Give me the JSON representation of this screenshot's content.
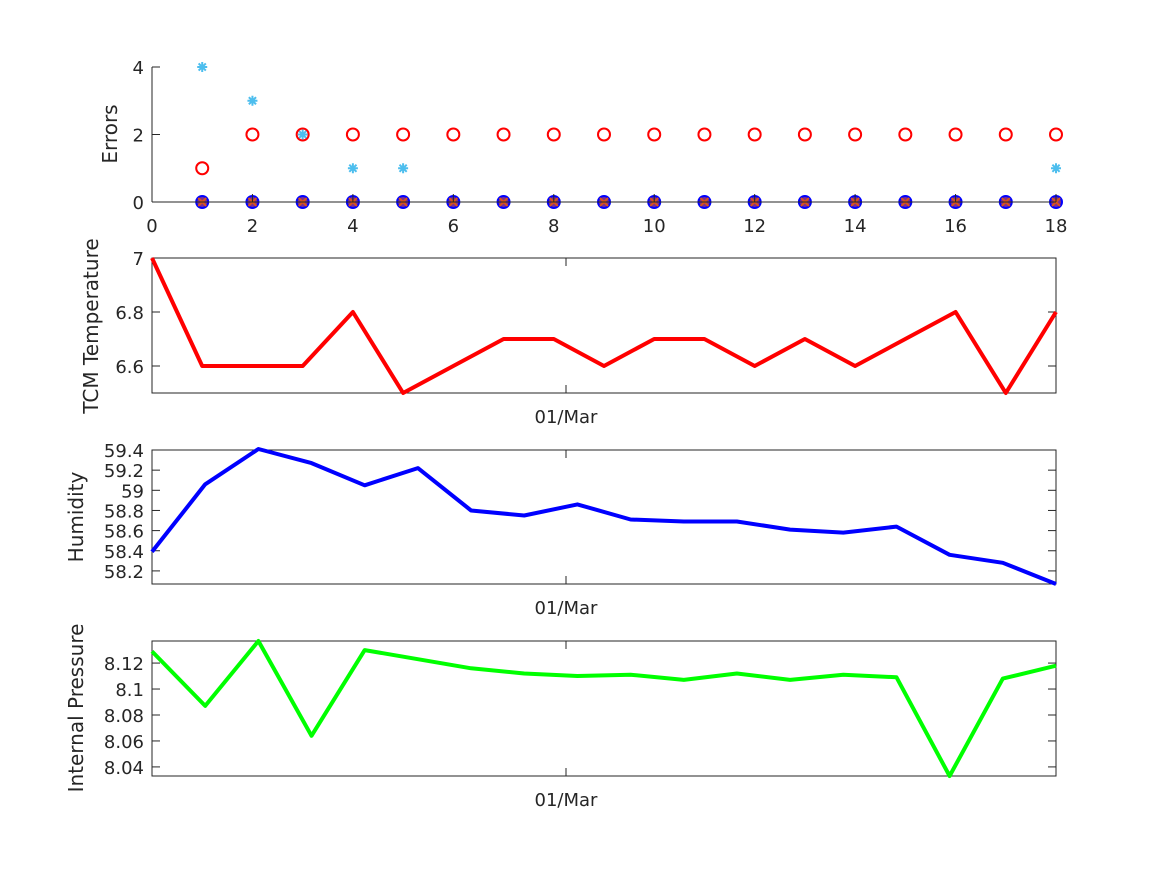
{
  "chart_data": [
    {
      "type": "scatter",
      "ylabel": "Errors",
      "xlim": [
        0,
        18
      ],
      "ylim": [
        0,
        4
      ],
      "xticks": [
        "0",
        "2",
        "4",
        "6",
        "8",
        "10",
        "12",
        "14",
        "16",
        "18"
      ],
      "yticks": [
        "0",
        "2",
        "4"
      ],
      "series": [
        {
          "marker": "circle-open",
          "color": "#ff0000",
          "x": [
            1,
            2,
            3,
            4,
            5,
            6,
            7,
            8,
            9,
            10,
            11,
            12,
            13,
            14,
            15,
            16,
            17,
            18
          ],
          "y": [
            1,
            2,
            2,
            2,
            2,
            2,
            2,
            2,
            2,
            2,
            2,
            2,
            2,
            2,
            2,
            2,
            2,
            2
          ]
        },
        {
          "marker": "asterisk",
          "color": "#4dbeee",
          "x": [
            1,
            2,
            3,
            4,
            5,
            18
          ],
          "y": [
            4,
            3,
            2,
            1,
            1,
            1
          ]
        },
        {
          "marker": "circle-filled",
          "color": "#0000ff",
          "x": [
            1,
            2,
            3,
            4,
            5,
            6,
            7,
            8,
            9,
            10,
            11,
            12,
            13,
            14,
            15,
            16,
            17,
            18
          ],
          "y": [
            0,
            0,
            0,
            0,
            0,
            0,
            0,
            0,
            0,
            0,
            0,
            0,
            0,
            0,
            0,
            0,
            0,
            0
          ]
        },
        {
          "marker": "x",
          "color": "#d95319",
          "x": [
            1,
            2,
            3,
            4,
            5,
            6,
            7,
            8,
            9,
            10,
            11,
            12,
            13,
            14,
            15,
            16,
            17,
            18
          ],
          "y": [
            0,
            0,
            0,
            0,
            0,
            0,
            0,
            0,
            0,
            0,
            0,
            0,
            0,
            0,
            0,
            0,
            0,
            0
          ]
        }
      ]
    },
    {
      "type": "line",
      "ylabel": "TCM Temperature",
      "xlabel_tick": "01/Mar",
      "ylim": [
        6.5,
        7.0
      ],
      "yticks": [
        "6.6",
        "6.8",
        "7"
      ],
      "ytick_values": [
        6.6,
        6.8,
        7.0
      ],
      "color": "#ff0000",
      "y": [
        7.0,
        6.6,
        6.6,
        6.6,
        6.8,
        6.5,
        6.6,
        6.7,
        6.7,
        6.6,
        6.7,
        6.7,
        6.6,
        6.7,
        6.6,
        6.7,
        6.8,
        6.5,
        6.8
      ]
    },
    {
      "type": "line",
      "ylabel": "Humidity",
      "xlabel_tick": "01/Mar",
      "ylim": [
        58.07,
        59.4
      ],
      "yticks": [
        "58.2",
        "58.4",
        "58.6",
        "58.8",
        "59",
        "59.2",
        "59.4"
      ],
      "ytick_values": [
        58.2,
        58.4,
        58.6,
        58.8,
        59.0,
        59.2,
        59.4
      ],
      "color": "#0000ff",
      "y": [
        58.39,
        59.06,
        59.41,
        59.27,
        59.05,
        59.22,
        58.8,
        58.75,
        58.86,
        58.71,
        58.69,
        58.69,
        58.61,
        58.58,
        58.64,
        58.36,
        58.28,
        58.07
      ]
    },
    {
      "type": "line",
      "ylabel": "Internal Pressure",
      "xlabel_tick": "01/Mar",
      "ylim": [
        8.033,
        8.137
      ],
      "yticks": [
        "8.04",
        "8.06",
        "8.08",
        "8.1",
        "8.12"
      ],
      "ytick_values": [
        8.04,
        8.06,
        8.08,
        8.1,
        8.12
      ],
      "color": "#00ff00",
      "y": [
        8.129,
        8.087,
        8.137,
        8.064,
        8.13,
        8.123,
        8.116,
        8.112,
        8.11,
        8.111,
        8.107,
        8.112,
        8.107,
        8.111,
        8.109,
        8.033,
        8.108,
        8.118
      ]
    }
  ]
}
